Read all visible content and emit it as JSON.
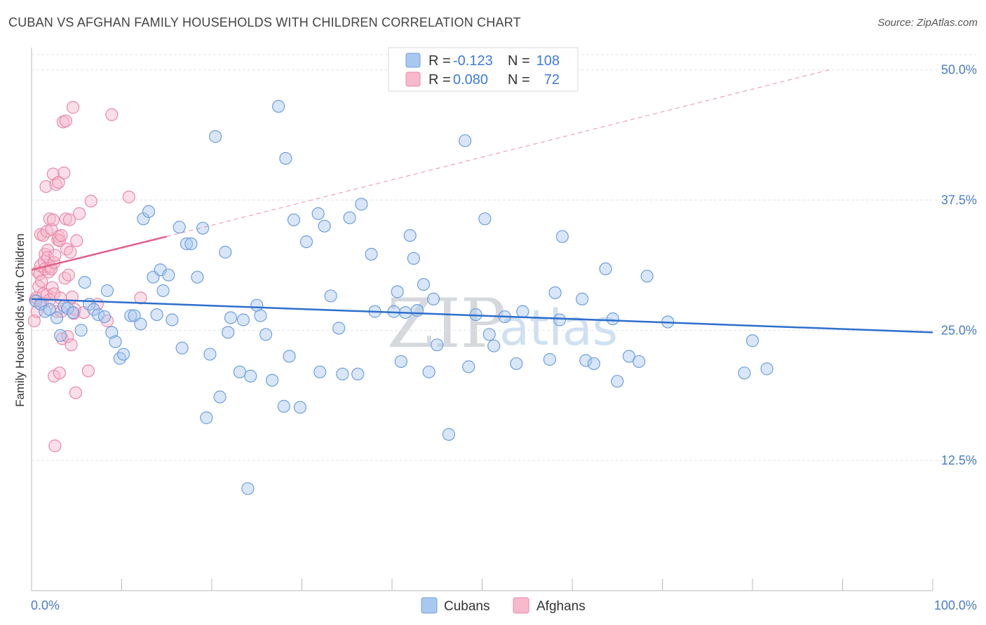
{
  "header": {
    "title": "CUBAN VS AFGHAN FAMILY HOUSEHOLDS WITH CHILDREN CORRELATION CHART",
    "source": "Source: ZipAtlas.com"
  },
  "legend": {
    "r_label": "R =",
    "n_label": "N =",
    "cubans": {
      "r": "-0.123",
      "n": "108"
    },
    "afghans": {
      "r": "0.080",
      "n": "72"
    }
  },
  "watermark": {
    "zip": "ZIP",
    "atlas": "atlas"
  },
  "colors": {
    "cubans_fill": "#a9c8ef",
    "cubans_stroke": "#6f9fde",
    "cubans_line": "#2d6fcc",
    "afghans_fill": "#f7b9cb",
    "afghans_stroke": "#e889a7",
    "afghans_line": "#e0608a",
    "grid": "#e3e3e3",
    "axis_text": "#4a7cc7"
  },
  "chart_data": {
    "type": "scatter",
    "title": "CUBAN VS AFGHAN FAMILY HOUSEHOLDS WITH CHILDREN CORRELATION CHART",
    "xlabel": "",
    "ylabel": "Family Households with Children",
    "xlim": [
      0,
      100
    ],
    "ylim": [
      0,
      52
    ],
    "x_tick_labels": [
      "0.0%",
      "100.0%"
    ],
    "y_ticks": [
      12.5,
      25.0,
      37.5,
      50.0
    ],
    "y_tick_labels": [
      "12.5%",
      "25.0%",
      "37.5%",
      "50.0%"
    ],
    "grid": true,
    "legend_position": "bottom",
    "series": [
      {
        "name": "Cubans",
        "trend": {
          "x": [
            0,
            100
          ],
          "y": [
            28.0,
            24.8
          ]
        },
        "points": [
          [
            0.5,
            27.8
          ],
          [
            1.0,
            27.5
          ],
          [
            1.5,
            26.8
          ],
          [
            2.0,
            27.0
          ],
          [
            2.8,
            26.2
          ],
          [
            3.2,
            24.5
          ],
          [
            3.6,
            27.3
          ],
          [
            4.0,
            27.1
          ],
          [
            4.6,
            26.7
          ],
          [
            5.5,
            25.0
          ],
          [
            5.9,
            29.6
          ],
          [
            6.4,
            27.5
          ],
          [
            6.9,
            27.0
          ],
          [
            7.4,
            26.5
          ],
          [
            8.1,
            26.3
          ],
          [
            8.4,
            28.8
          ],
          [
            8.9,
            24.8
          ],
          [
            9.3,
            23.9
          ],
          [
            9.8,
            22.3
          ],
          [
            10.2,
            22.7
          ],
          [
            11.0,
            26.4
          ],
          [
            11.4,
            26.4
          ],
          [
            12.1,
            25.6
          ],
          [
            12.4,
            35.7
          ],
          [
            13.0,
            36.4
          ],
          [
            13.5,
            30.1
          ],
          [
            13.9,
            26.5
          ],
          [
            14.3,
            30.8
          ],
          [
            14.6,
            28.8
          ],
          [
            15.2,
            30.3
          ],
          [
            15.6,
            26.0
          ],
          [
            16.4,
            34.9
          ],
          [
            16.7,
            23.3
          ],
          [
            17.2,
            33.3
          ],
          [
            17.7,
            33.3
          ],
          [
            18.4,
            30.1
          ],
          [
            19.0,
            34.8
          ],
          [
            19.4,
            16.6
          ],
          [
            19.8,
            22.7
          ],
          [
            20.4,
            43.6
          ],
          [
            20.9,
            18.6
          ],
          [
            21.5,
            32.5
          ],
          [
            21.8,
            24.8
          ],
          [
            22.1,
            26.2
          ],
          [
            23.1,
            21.0
          ],
          [
            23.5,
            26.0
          ],
          [
            24.0,
            9.8
          ],
          [
            24.3,
            20.6
          ],
          [
            25.0,
            27.4
          ],
          [
            25.4,
            26.4
          ],
          [
            26.0,
            24.6
          ],
          [
            26.7,
            20.2
          ],
          [
            27.4,
            46.5
          ],
          [
            28.0,
            17.7
          ],
          [
            28.2,
            41.5
          ],
          [
            28.6,
            22.5
          ],
          [
            29.1,
            35.6
          ],
          [
            29.8,
            17.6
          ],
          [
            30.5,
            33.5
          ],
          [
            31.8,
            36.2
          ],
          [
            32.0,
            21.0
          ],
          [
            32.5,
            35.0
          ],
          [
            33.2,
            28.3
          ],
          [
            34.1,
            25.2
          ],
          [
            34.5,
            20.8
          ],
          [
            35.3,
            35.8
          ],
          [
            36.2,
            20.8
          ],
          [
            36.6,
            37.1
          ],
          [
            37.7,
            32.3
          ],
          [
            38.1,
            26.8
          ],
          [
            40.2,
            26.8
          ],
          [
            40.6,
            28.7
          ],
          [
            41.0,
            22.0
          ],
          [
            41.5,
            26.7
          ],
          [
            42.0,
            34.1
          ],
          [
            42.4,
            31.9
          ],
          [
            42.8,
            26.9
          ],
          [
            43.5,
            29.4
          ],
          [
            44.1,
            21.0
          ],
          [
            44.6,
            28.0
          ],
          [
            45.0,
            23.6
          ],
          [
            46.3,
            15.0
          ],
          [
            48.1,
            43.2
          ],
          [
            48.5,
            21.5
          ],
          [
            49.3,
            26.5
          ],
          [
            50.3,
            35.7
          ],
          [
            50.8,
            24.6
          ],
          [
            51.3,
            23.5
          ],
          [
            52.5,
            26.3
          ],
          [
            53.8,
            21.8
          ],
          [
            54.5,
            26.8
          ],
          [
            57.5,
            22.2
          ],
          [
            58.1,
            28.6
          ],
          [
            58.6,
            26.0
          ],
          [
            58.9,
            34.0
          ],
          [
            61.1,
            28.0
          ],
          [
            61.5,
            22.1
          ],
          [
            62.4,
            21.8
          ],
          [
            63.7,
            30.9
          ],
          [
            64.5,
            26.1
          ],
          [
            65.0,
            20.1
          ],
          [
            66.3,
            22.5
          ],
          [
            67.4,
            22.0
          ],
          [
            68.3,
            30.2
          ],
          [
            70.6,
            25.8
          ],
          [
            79.1,
            20.9
          ],
          [
            80.0,
            24.0
          ],
          [
            81.6,
            21.3
          ]
        ]
      },
      {
        "name": "Afghans",
        "trend_solid": {
          "x": [
            0,
            15
          ],
          "y": [
            30.8,
            34.0
          ]
        },
        "trend_dashed": {
          "x": [
            15,
            88.5
          ],
          "y": [
            34.0,
            50.0
          ]
        },
        "points": [
          [
            0.3,
            25.9
          ],
          [
            0.4,
            27.9
          ],
          [
            0.5,
            28.1
          ],
          [
            0.6,
            26.8
          ],
          [
            0.7,
            30.6
          ],
          [
            0.8,
            29.2
          ],
          [
            0.9,
            30.4
          ],
          [
            1.0,
            34.2
          ],
          [
            1.0,
            31.2
          ],
          [
            1.1,
            29.7
          ],
          [
            1.2,
            27.6
          ],
          [
            1.3,
            28.5
          ],
          [
            1.3,
            34.1
          ],
          [
            1.4,
            31.6
          ],
          [
            1.5,
            32.3
          ],
          [
            1.5,
            30.9
          ],
          [
            1.6,
            38.8
          ],
          [
            1.7,
            34.5
          ],
          [
            1.7,
            28.4
          ],
          [
            1.8,
            32.7
          ],
          [
            1.8,
            32.0
          ],
          [
            1.9,
            30.6
          ],
          [
            2.0,
            27.9
          ],
          [
            2.0,
            35.7
          ],
          [
            2.1,
            31.1
          ],
          [
            2.2,
            30.9
          ],
          [
            2.2,
            34.7
          ],
          [
            2.3,
            29.1
          ],
          [
            2.4,
            40.0
          ],
          [
            2.4,
            35.6
          ],
          [
            2.5,
            28.5
          ],
          [
            2.5,
            31.5
          ],
          [
            2.6,
            32.2
          ],
          [
            2.7,
            39.0
          ],
          [
            2.8,
            26.8
          ],
          [
            2.9,
            33.7
          ],
          [
            3.0,
            34.0
          ],
          [
            3.0,
            39.2
          ],
          [
            3.1,
            33.6
          ],
          [
            3.2,
            28.1
          ],
          [
            3.3,
            26.8
          ],
          [
            3.3,
            34.1
          ],
          [
            3.4,
            24.2
          ],
          [
            3.5,
            45.0
          ],
          [
            3.6,
            40.1
          ],
          [
            3.7,
            30.0
          ],
          [
            3.8,
            45.1
          ],
          [
            3.8,
            35.7
          ],
          [
            3.9,
            32.8
          ],
          [
            4.0,
            24.4
          ],
          [
            4.1,
            30.3
          ],
          [
            4.2,
            35.6
          ],
          [
            4.3,
            32.5
          ],
          [
            4.4,
            23.6
          ],
          [
            4.5,
            28.2
          ],
          [
            4.6,
            46.4
          ],
          [
            4.7,
            26.6
          ],
          [
            4.8,
            27.0
          ],
          [
            4.9,
            19.0
          ],
          [
            5.0,
            33.6
          ],
          [
            5.3,
            36.2
          ],
          [
            5.8,
            26.7
          ],
          [
            6.3,
            21.1
          ],
          [
            6.6,
            37.4
          ],
          [
            7.3,
            27.5
          ],
          [
            8.4,
            25.9
          ],
          [
            8.9,
            45.7
          ],
          [
            10.8,
            37.8
          ],
          [
            12.1,
            28.1
          ],
          [
            2.5,
            20.6
          ],
          [
            2.6,
            13.9
          ],
          [
            3.1,
            20.9
          ]
        ]
      }
    ]
  }
}
